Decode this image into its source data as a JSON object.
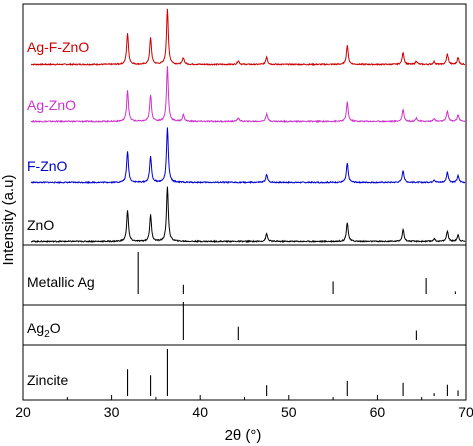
{
  "chart_data": {
    "type": "line",
    "xlabel": "2θ (°)",
    "ylabel": "Intensity (a.u)",
    "xlim": [
      20,
      70
    ],
    "x_ticks": [
      20,
      30,
      40,
      50,
      60,
      70
    ],
    "x_tick_labels": [
      "20",
      "30",
      "40",
      "50",
      "60",
      "70"
    ],
    "xrd_series": [
      {
        "name": "Ag-F-ZnO",
        "color": "#cc0000",
        "peaks": [
          [
            31.8,
            0.57
          ],
          [
            34.4,
            0.48
          ],
          [
            36.3,
            1.0
          ],
          [
            38.1,
            0.12
          ],
          [
            44.3,
            0.07
          ],
          [
            47.5,
            0.14
          ],
          [
            56.6,
            0.35
          ],
          [
            62.9,
            0.22
          ],
          [
            64.4,
            0.06
          ],
          [
            66.4,
            0.05
          ],
          [
            67.9,
            0.19
          ],
          [
            69.1,
            0.12
          ]
        ]
      },
      {
        "name": "Ag-ZnO",
        "color": "#cc33cc",
        "peaks": [
          [
            31.8,
            0.57
          ],
          [
            34.4,
            0.48
          ],
          [
            36.3,
            1.0
          ],
          [
            38.1,
            0.12
          ],
          [
            44.3,
            0.07
          ],
          [
            47.5,
            0.14
          ],
          [
            56.6,
            0.35
          ],
          [
            62.9,
            0.22
          ],
          [
            64.4,
            0.06
          ],
          [
            66.4,
            0.05
          ],
          [
            67.9,
            0.19
          ],
          [
            69.1,
            0.12
          ]
        ]
      },
      {
        "name": "F-ZnO",
        "color": "#0000cc",
        "peaks": [
          [
            31.8,
            0.57
          ],
          [
            34.4,
            0.48
          ],
          [
            36.3,
            1.0
          ],
          [
            47.5,
            0.14
          ],
          [
            56.6,
            0.35
          ],
          [
            62.9,
            0.22
          ],
          [
            66.4,
            0.05
          ],
          [
            67.9,
            0.19
          ],
          [
            69.1,
            0.12
          ]
        ]
      },
      {
        "name": "ZnO",
        "color": "#000000",
        "peaks": [
          [
            31.8,
            0.57
          ],
          [
            34.4,
            0.48
          ],
          [
            36.3,
            1.0
          ],
          [
            47.5,
            0.14
          ],
          [
            56.6,
            0.35
          ],
          [
            62.9,
            0.22
          ],
          [
            66.4,
            0.05
          ],
          [
            67.9,
            0.19
          ],
          [
            69.1,
            0.12
          ]
        ]
      }
    ],
    "reference_panels": [
      {
        "name": "Metallic Ag",
        "lines": [
          [
            33.0,
            1.0
          ],
          [
            38.1,
            0.22
          ],
          [
            55.0,
            0.3
          ],
          [
            65.5,
            0.38
          ],
          [
            68.8,
            0.06
          ]
        ]
      },
      {
        "name": "Ag2O",
        "label_main": "Ag",
        "label_sub": "2",
        "label_end": "O",
        "lines": [
          [
            38.1,
            1.0
          ],
          [
            44.3,
            0.35
          ],
          [
            64.4,
            0.25
          ]
        ]
      },
      {
        "name": "Zincite",
        "lines": [
          [
            31.8,
            0.57
          ],
          [
            34.4,
            0.44
          ],
          [
            36.3,
            1.0
          ],
          [
            47.5,
            0.23
          ],
          [
            56.6,
            0.32
          ],
          [
            62.9,
            0.28
          ],
          [
            66.4,
            0.06
          ],
          [
            67.9,
            0.24
          ],
          [
            69.1,
            0.12
          ]
        ]
      }
    ]
  }
}
